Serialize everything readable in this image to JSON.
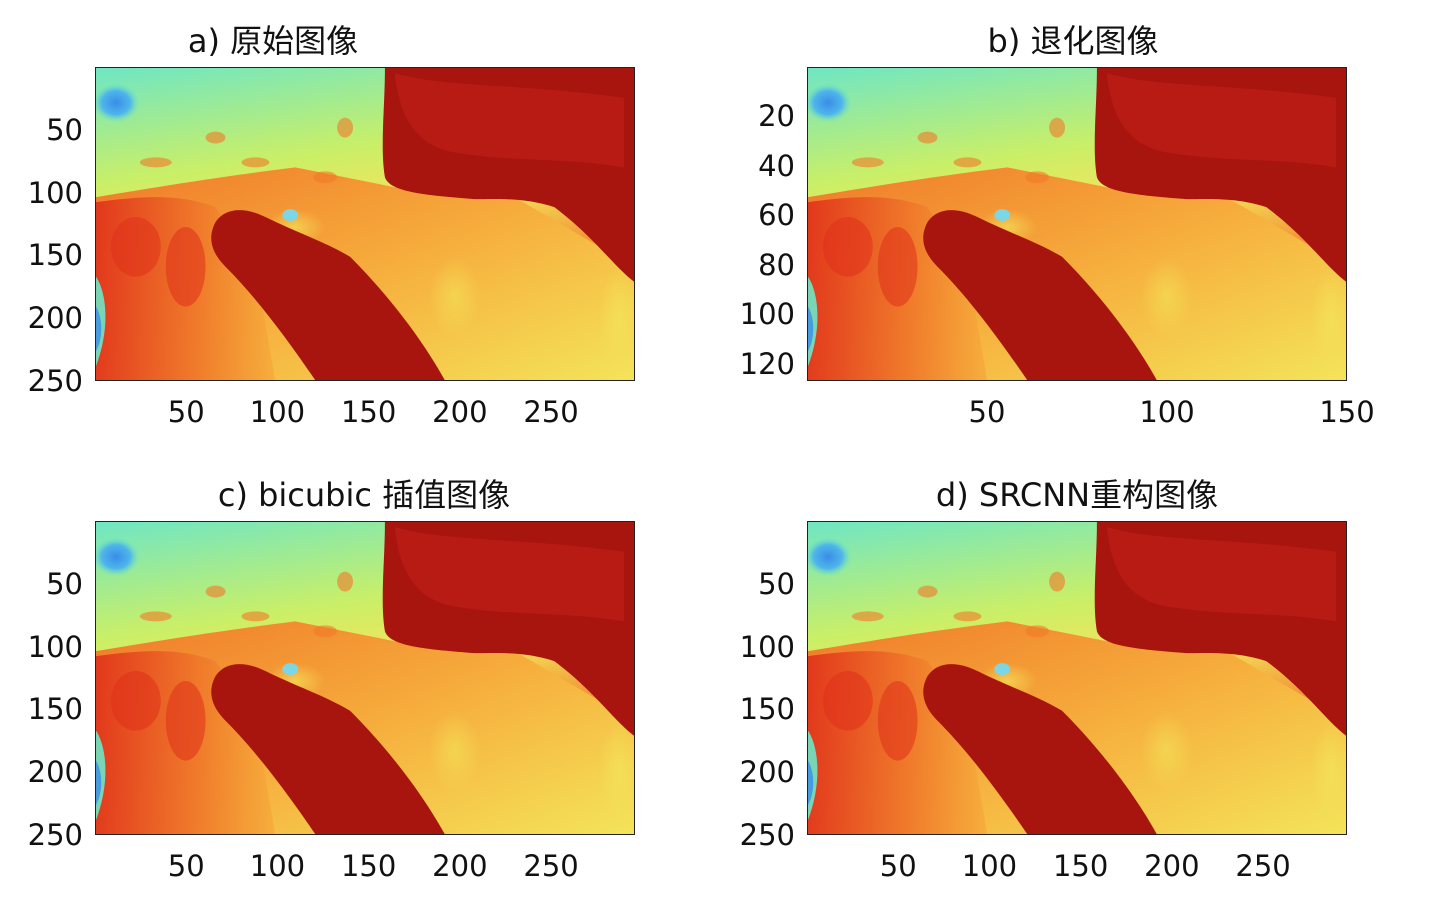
{
  "chart_data": [
    {
      "type": "heatmap",
      "title": "a) 原始图像",
      "xticks": [
        50,
        100,
        150,
        200,
        250
      ],
      "yticks": [
        50,
        100,
        150,
        200,
        250
      ],
      "xlim": [
        0,
        296
      ],
      "ylim": [
        0,
        250
      ],
      "grid": false,
      "colormap": "jet"
    },
    {
      "type": "heatmap",
      "title": "b) 退化图像",
      "xticks": [
        50,
        100,
        150
      ],
      "yticks": [
        20,
        40,
        60,
        80,
        100,
        120
      ],
      "xlim": [
        0,
        150
      ],
      "ylim": [
        0,
        127
      ],
      "grid": false,
      "colormap": "jet"
    },
    {
      "type": "heatmap",
      "title": "c) bicubic 插值图像",
      "xticks": [
        50,
        100,
        150,
        200,
        250
      ],
      "yticks": [
        50,
        100,
        150,
        200,
        250
      ],
      "xlim": [
        0,
        296
      ],
      "ylim": [
        0,
        250
      ],
      "grid": false,
      "colormap": "jet"
    },
    {
      "type": "heatmap",
      "title": "d) SRCNN重构图像",
      "xticks": [
        50,
        100,
        150,
        200,
        250
      ],
      "yticks": [
        50,
        100,
        150,
        200,
        250
      ],
      "xlim": [
        0,
        296
      ],
      "ylim": [
        0,
        250
      ],
      "grid": false,
      "colormap": "jet"
    }
  ],
  "colors": {
    "dark_red": "#a8140e",
    "red": "#e0301a",
    "orange": "#f07a2a",
    "light_orange": "#f6ad3c",
    "yellow": "#f4e45a",
    "light_green": "#c9ef68",
    "cyan": "#6fe6c4",
    "blue": "#3a8de8"
  }
}
